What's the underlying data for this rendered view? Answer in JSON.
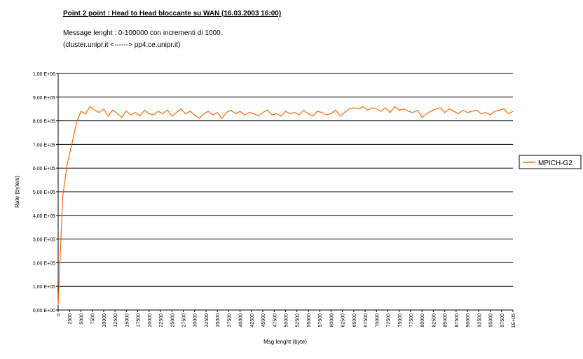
{
  "chart_data": {
    "type": "line",
    "title": "Point 2 point : Head to Head bloccante su WAN (16.03.2003 16:00)",
    "subtitle": [
      "Message lenght :  0-100000 con incrementi di 1000.",
      "(cluster.unipr.it    <------>  pp4.ce.unipr.it)"
    ],
    "x_label": "Msg lenght (byte)",
    "y_label": "Rate (byte/s)",
    "x": [
      0,
      1000,
      2000,
      3000,
      4000,
      5000,
      6000,
      7000,
      8000,
      9000,
      10000,
      11000,
      12000,
      13000,
      14000,
      15000,
      16000,
      17000,
      18000,
      19000,
      20000,
      21000,
      22000,
      23000,
      24000,
      25000,
      26000,
      27000,
      28000,
      29000,
      30000,
      31000,
      32000,
      33000,
      34000,
      35000,
      36000,
      37000,
      38000,
      39000,
      40000,
      41000,
      42000,
      43000,
      44000,
      45000,
      46000,
      47000,
      48000,
      49000,
      50000,
      51000,
      52000,
      53000,
      54000,
      55000,
      56000,
      57000,
      58000,
      59000,
      60000,
      61000,
      62000,
      63000,
      64000,
      65000,
      66000,
      67000,
      68000,
      69000,
      70000,
      71000,
      72000,
      73000,
      74000,
      75000,
      76000,
      77000,
      78000,
      79000,
      80000,
      81000,
      82000,
      83000,
      84000,
      85000,
      86000,
      87000,
      88000,
      89000,
      90000,
      91000,
      92000,
      93000,
      94000,
      95000,
      96000,
      97000,
      98000,
      99000,
      100000
    ],
    "series": [
      {
        "name": "MPICH-G2",
        "color": "#ff6600",
        "values": [
          20000,
          480000,
          620000,
          700000,
          790000,
          840000,
          830000,
          860000,
          845000,
          835000,
          850000,
          820000,
          845000,
          830000,
          815000,
          840000,
          825000,
          835000,
          820000,
          845000,
          830000,
          825000,
          840000,
          830000,
          845000,
          820000,
          835000,
          850000,
          830000,
          840000,
          825000,
          810000,
          830000,
          840000,
          825000,
          835000,
          810000,
          835000,
          845000,
          830000,
          840000,
          825000,
          835000,
          830000,
          820000,
          835000,
          845000,
          825000,
          830000,
          820000,
          840000,
          830000,
          835000,
          825000,
          845000,
          830000,
          820000,
          840000,
          835000,
          825000,
          830000,
          845000,
          820000,
          835000,
          850000,
          855000,
          850000,
          860000,
          845000,
          855000,
          850000,
          840000,
          855000,
          835000,
          860000,
          845000,
          850000,
          840000,
          835000,
          845000,
          815000,
          830000,
          840000,
          850000,
          855000,
          835000,
          850000,
          840000,
          830000,
          845000,
          835000,
          840000,
          845000,
          830000,
          835000,
          825000,
          840000,
          845000,
          850000,
          830000,
          840000
        ]
      }
    ],
    "xlim": [
      0,
      100000
    ],
    "xticks": [
      0,
      2500,
      5000,
      7500,
      10000,
      12500,
      15000,
      17500,
      20000,
      22500,
      25000,
      27500,
      30000,
      32500,
      35000,
      37500,
      40000,
      42500,
      45000,
      47500,
      50000,
      52500,
      55000,
      57500,
      60000,
      62500,
      65000,
      67500,
      70000,
      72500,
      75000,
      77500,
      80000,
      82500,
      85000,
      87500,
      90000,
      92500,
      95000,
      97500,
      {
        "value": 100000,
        "label": "1E+05"
      }
    ],
    "ylim": [
      0,
      1000000
    ],
    "yticks": [
      {
        "value": 0,
        "label": "0,00 E+00"
      },
      {
        "value": 100000,
        "label": "1,00 E+05"
      },
      {
        "value": 200000,
        "label": "2,00 E+05"
      },
      {
        "value": 300000,
        "label": "3,00 E+05"
      },
      {
        "value": 400000,
        "label": "4,00 E+05"
      },
      {
        "value": 500000,
        "label": "5,00 E+05"
      },
      {
        "value": 600000,
        "label": "6,00 E+05"
      },
      {
        "value": 700000,
        "label": "7,00 E+05"
      },
      {
        "value": 800000,
        "label": "8,00 E+05"
      },
      {
        "value": 900000,
        "label": "9,00 E+05"
      },
      {
        "value": 1000000,
        "label": "1,00 E+06"
      }
    ],
    "grid": true,
    "legend": "right"
  }
}
